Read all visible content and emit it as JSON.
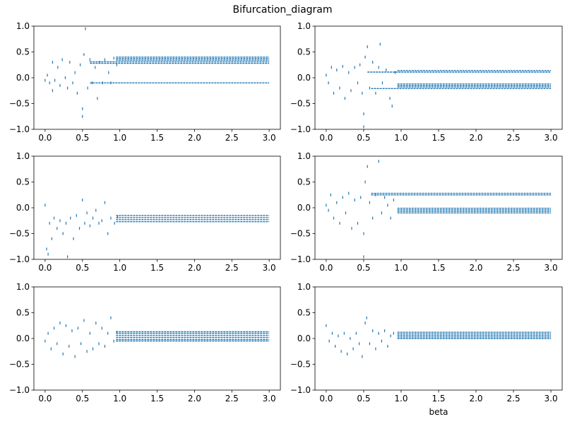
{
  "suptitle": "Bifurcation_diagram",
  "chart_data": [
    {
      "type": "scatter",
      "xlim": [
        -0.15,
        3.15
      ],
      "ylim": [
        -1,
        1
      ],
      "xticks": [
        {
          "value": 0,
          "label": "0.0"
        },
        {
          "value": 0.5,
          "label": "0.5"
        },
        {
          "value": 1,
          "label": "1.0"
        },
        {
          "value": 1.5,
          "label": "1.5"
        },
        {
          "value": 2,
          "label": "2.0"
        },
        {
          "value": 2.5,
          "label": "2.5"
        },
        {
          "value": 3,
          "label": "3.0"
        }
      ],
      "yticks": [
        {
          "value": -1,
          "label": "−1.0"
        },
        {
          "value": -0.5,
          "label": "−0.5"
        },
        {
          "value": 0,
          "label": "0.0"
        },
        {
          "value": 0.5,
          "label": "0.5"
        },
        {
          "value": 1,
          "label": "1.0"
        }
      ],
      "series": [
        {
          "mode": "markers",
          "color": "#1f77b4",
          "x": [
            0.0,
            0.03,
            0.06,
            0.1,
            0.13,
            0.17,
            0.2,
            0.23,
            0.27,
            0.3,
            0.33,
            0.37,
            0.4,
            0.43,
            0.47,
            0.5,
            0.52,
            0.54,
            0.57,
            0.6,
            0.63,
            0.67,
            0.7,
            0.73,
            0.77,
            0.8,
            0.85,
            0.88,
            0.92,
            0.96,
            0.5,
            0.1
          ],
          "y": [
            -0.05,
            0.05,
            -0.1,
            0.3,
            -0.05,
            0.2,
            -0.15,
            0.35,
            0.0,
            -0.2,
            0.3,
            -0.1,
            0.1,
            -0.3,
            0.25,
            -0.6,
            0.45,
            0.95,
            -0.2,
            0.35,
            -0.1,
            0.2,
            -0.4,
            0.3,
            -0.1,
            0.35,
            0.1,
            -0.1,
            0.38,
            0.25,
            -0.75,
            -0.25
          ]
        },
        {
          "mode": "lines",
          "color": "#1f77b4",
          "x": [
            0.6,
            3.0,
            null,
            0.6,
            3.0,
            null,
            0.95,
            3.0,
            null,
            0.95,
            3.0,
            null,
            0.95,
            3.0,
            null,
            0.6,
            3.0
          ],
          "y": [
            0.28,
            0.28,
            null,
            0.31,
            0.31,
            null,
            0.34,
            0.34,
            null,
            0.37,
            0.37,
            null,
            0.4,
            0.4,
            null,
            -0.1,
            -0.1
          ]
        }
      ]
    },
    {
      "type": "scatter",
      "xlim": [
        -0.15,
        3.15
      ],
      "ylim": [
        -1,
        1
      ],
      "xticks": [
        {
          "value": 0,
          "label": "0.0"
        },
        {
          "value": 0.5,
          "label": "0.5"
        },
        {
          "value": 1,
          "label": "1.0"
        },
        {
          "value": 1.5,
          "label": "1.5"
        },
        {
          "value": 2,
          "label": "2.0"
        },
        {
          "value": 2.5,
          "label": "2.5"
        },
        {
          "value": 3,
          "label": "3.0"
        }
      ],
      "yticks": [
        {
          "value": -1,
          "label": "−1.0"
        },
        {
          "value": -0.5,
          "label": "−0.5"
        },
        {
          "value": 0,
          "label": "0.0"
        },
        {
          "value": 0.5,
          "label": "0.5"
        },
        {
          "value": 1,
          "label": "1.0"
        }
      ],
      "series": [
        {
          "mode": "markers",
          "color": "#1f77b4",
          "x": [
            0.0,
            0.03,
            0.07,
            0.1,
            0.14,
            0.18,
            0.22,
            0.25,
            0.3,
            0.33,
            0.38,
            0.42,
            0.45,
            0.48,
            0.5,
            0.52,
            0.55,
            0.58,
            0.62,
            0.66,
            0.7,
            0.72,
            0.75,
            0.8,
            0.85,
            0.88,
            0.92,
            0.5
          ],
          "y": [
            0.05,
            -0.1,
            0.2,
            -0.3,
            0.15,
            -0.2,
            0.22,
            -0.4,
            0.1,
            -0.25,
            0.2,
            -0.1,
            0.25,
            -0.3,
            -0.7,
            0.4,
            0.6,
            -0.2,
            0.3,
            -0.3,
            0.2,
            0.65,
            -0.1,
            0.15,
            -0.4,
            -0.55,
            0.1,
            -0.95
          ]
        },
        {
          "mode": "lines",
          "color": "#1f77b4",
          "x": [
            0.55,
            3.0,
            null,
            0.95,
            3.0,
            null,
            0.6,
            3.0,
            null,
            0.95,
            3.0,
            null,
            0.95,
            3.0,
            null,
            0.95,
            3.0
          ],
          "y": [
            0.11,
            0.11,
            null,
            0.14,
            0.14,
            null,
            -0.21,
            -0.21,
            null,
            -0.18,
            -0.18,
            null,
            -0.15,
            -0.15,
            null,
            -0.12,
            -0.12
          ]
        }
      ]
    },
    {
      "type": "scatter",
      "xlim": [
        -0.15,
        3.15
      ],
      "ylim": [
        -1,
        1
      ],
      "xticks": [
        {
          "value": 0,
          "label": "0.0"
        },
        {
          "value": 0.5,
          "label": "0.5"
        },
        {
          "value": 1,
          "label": "1.0"
        },
        {
          "value": 1.5,
          "label": "1.5"
        },
        {
          "value": 2,
          "label": "2.0"
        },
        {
          "value": 2.5,
          "label": "2.5"
        },
        {
          "value": 3,
          "label": "3.0"
        }
      ],
      "yticks": [
        {
          "value": -1,
          "label": "−1.0"
        },
        {
          "value": -0.5,
          "label": "−0.5"
        },
        {
          "value": 0,
          "label": "0.0"
        },
        {
          "value": 0.5,
          "label": "0.5"
        },
        {
          "value": 1,
          "label": "1.0"
        }
      ],
      "series": [
        {
          "mode": "markers",
          "color": "#1f77b4",
          "x": [
            0.0,
            0.02,
            0.04,
            0.06,
            0.09,
            0.12,
            0.16,
            0.2,
            0.24,
            0.28,
            0.3,
            0.34,
            0.38,
            0.42,
            0.46,
            0.5,
            0.53,
            0.56,
            0.6,
            0.64,
            0.68,
            0.72,
            0.76,
            0.8,
            0.84,
            0.88,
            0.93,
            0.97
          ],
          "y": [
            0.05,
            -0.8,
            -0.9,
            -0.3,
            -0.6,
            -0.2,
            -0.4,
            -0.25,
            -0.5,
            -0.3,
            -0.95,
            -0.2,
            -0.6,
            -0.15,
            -0.4,
            0.15,
            -0.3,
            -0.1,
            -0.35,
            -0.2,
            -0.05,
            -0.3,
            -0.25,
            0.1,
            -0.5,
            -0.2,
            -0.3,
            -0.18
          ]
        },
        {
          "mode": "lines",
          "color": "#1f77b4",
          "x": [
            0.95,
            3.0,
            null,
            0.95,
            3.0,
            null,
            0.95,
            3.0,
            null,
            0.95,
            3.0
          ],
          "y": [
            -0.27,
            -0.27,
            null,
            -0.23,
            -0.23,
            null,
            -0.19,
            -0.19,
            null,
            -0.15,
            -0.15
          ]
        }
      ]
    },
    {
      "type": "scatter",
      "xlim": [
        -0.15,
        3.15
      ],
      "ylim": [
        -1,
        1
      ],
      "xticks": [
        {
          "value": 0,
          "label": "0.0"
        },
        {
          "value": 0.5,
          "label": "0.5"
        },
        {
          "value": 1,
          "label": "1.0"
        },
        {
          "value": 1.5,
          "label": "1.5"
        },
        {
          "value": 2,
          "label": "2.0"
        },
        {
          "value": 2.5,
          "label": "2.5"
        },
        {
          "value": 3,
          "label": "3.0"
        }
      ],
      "yticks": [
        {
          "value": -1,
          "label": "−1.0"
        },
        {
          "value": -0.5,
          "label": "−0.5"
        },
        {
          "value": 0,
          "label": "0.0"
        },
        {
          "value": 0.5,
          "label": "0.5"
        },
        {
          "value": 1,
          "label": "1.0"
        }
      ],
      "series": [
        {
          "mode": "markers",
          "color": "#1f77b4",
          "x": [
            0.0,
            0.03,
            0.06,
            0.1,
            0.14,
            0.18,
            0.22,
            0.26,
            0.3,
            0.34,
            0.38,
            0.42,
            0.46,
            0.5,
            0.52,
            0.55,
            0.58,
            0.62,
            0.66,
            0.7,
            0.74,
            0.78,
            0.82,
            0.86,
            0.9,
            0.5
          ],
          "y": [
            0.05,
            -0.05,
            0.25,
            -0.2,
            0.1,
            -0.3,
            0.2,
            -0.1,
            0.28,
            -0.4,
            0.15,
            -0.3,
            0.2,
            -0.95,
            0.5,
            0.8,
            0.1,
            -0.2,
            0.25,
            0.9,
            -0.1,
            0.2,
            0.05,
            -0.2,
            0.15,
            -0.5
          ]
        },
        {
          "mode": "lines",
          "color": "#1f77b4",
          "x": [
            0.6,
            3.0,
            null,
            0.6,
            3.0,
            null,
            0.95,
            3.0,
            null,
            0.95,
            3.0,
            null,
            0.95,
            3.0,
            null,
            0.95,
            3.0
          ],
          "y": [
            0.25,
            0.25,
            null,
            0.28,
            0.28,
            null,
            -0.1,
            -0.1,
            null,
            -0.07,
            -0.07,
            null,
            -0.04,
            -0.04,
            null,
            -0.01,
            -0.01
          ]
        }
      ]
    },
    {
      "type": "scatter",
      "xlim": [
        -0.15,
        3.15
      ],
      "ylim": [
        -1,
        1
      ],
      "xticks": [
        {
          "value": 0,
          "label": "0.0"
        },
        {
          "value": 0.5,
          "label": "0.5"
        },
        {
          "value": 1,
          "label": "1.0"
        },
        {
          "value": 1.5,
          "label": "1.5"
        },
        {
          "value": 2,
          "label": "2.0"
        },
        {
          "value": 2.5,
          "label": "2.5"
        },
        {
          "value": 3,
          "label": "3.0"
        }
      ],
      "yticks": [
        {
          "value": -1,
          "label": "−1.0"
        },
        {
          "value": -0.5,
          "label": "−0.5"
        },
        {
          "value": 0,
          "label": "0.0"
        },
        {
          "value": 0.5,
          "label": "0.5"
        },
        {
          "value": 1,
          "label": "1.0"
        }
      ],
      "series": [
        {
          "mode": "markers",
          "color": "#1f77b4",
          "x": [
            0.0,
            0.04,
            0.08,
            0.12,
            0.16,
            0.2,
            0.24,
            0.28,
            0.32,
            0.36,
            0.4,
            0.44,
            0.48,
            0.52,
            0.56,
            0.6,
            0.64,
            0.68,
            0.72,
            0.76,
            0.8,
            0.84,
            0.88,
            0.92,
            0.96
          ],
          "y": [
            -0.05,
            0.1,
            -0.2,
            0.2,
            -0.1,
            0.3,
            -0.3,
            0.25,
            -0.15,
            0.15,
            -0.35,
            0.2,
            -0.1,
            0.35,
            -0.25,
            0.1,
            -0.2,
            0.3,
            -0.1,
            0.2,
            -0.15,
            0.1,
            0.4,
            -0.05,
            0.12
          ]
        },
        {
          "mode": "lines",
          "color": "#1f77b4",
          "x": [
            0.95,
            3.0,
            null,
            0.95,
            3.0,
            null,
            0.95,
            3.0,
            null,
            0.95,
            3.0,
            null,
            0.95,
            3.0,
            null,
            0.95,
            3.0
          ],
          "y": [
            -0.05,
            -0.05,
            null,
            -0.02,
            -0.02,
            null,
            0.02,
            0.02,
            null,
            0.06,
            0.06,
            null,
            0.1,
            0.1,
            null,
            0.13,
            0.13
          ]
        }
      ]
    },
    {
      "type": "scatter",
      "xlim": [
        -0.15,
        3.15
      ],
      "ylim": [
        -1,
        1
      ],
      "x_label": "beta",
      "xticks": [
        {
          "value": 0,
          "label": "0.0"
        },
        {
          "value": 0.5,
          "label": "0.5"
        },
        {
          "value": 1,
          "label": "1.0"
        },
        {
          "value": 1.5,
          "label": "1.5"
        },
        {
          "value": 2,
          "label": "2.0"
        },
        {
          "value": 2.5,
          "label": "2.5"
        },
        {
          "value": 3,
          "label": "3.0"
        }
      ],
      "yticks": [
        {
          "value": -1,
          "label": "−1.0"
        },
        {
          "value": -0.5,
          "label": "−0.5"
        },
        {
          "value": 0,
          "label": "0.0"
        },
        {
          "value": 0.5,
          "label": "0.5"
        },
        {
          "value": 1,
          "label": "1.0"
        }
      ],
      "series": [
        {
          "mode": "markers",
          "color": "#1f77b4",
          "x": [
            0.0,
            0.04,
            0.08,
            0.12,
            0.16,
            0.2,
            0.24,
            0.28,
            0.32,
            0.36,
            0.4,
            0.44,
            0.48,
            0.52,
            0.54,
            0.58,
            0.62,
            0.66,
            0.7,
            0.74,
            0.78,
            0.82,
            0.86,
            0.9
          ],
          "y": [
            0.25,
            -0.05,
            0.1,
            -0.15,
            0.05,
            -0.25,
            0.1,
            -0.3,
            0.0,
            -0.2,
            0.1,
            -0.1,
            -0.35,
            0.3,
            0.4,
            -0.1,
            0.15,
            -0.2,
            0.1,
            -0.05,
            0.15,
            -0.15,
            0.05,
            0.1
          ]
        },
        {
          "mode": "lines",
          "color": "#1f77b4",
          "x": [
            0.95,
            3.0,
            null,
            0.95,
            3.0,
            null,
            0.95,
            3.0,
            null,
            0.95,
            3.0,
            null,
            0.95,
            3.0
          ],
          "y": [
            0.0,
            0.0,
            null,
            0.03,
            0.03,
            null,
            0.06,
            0.06,
            null,
            0.09,
            0.09,
            null,
            0.12,
            0.12
          ]
        }
      ]
    }
  ]
}
